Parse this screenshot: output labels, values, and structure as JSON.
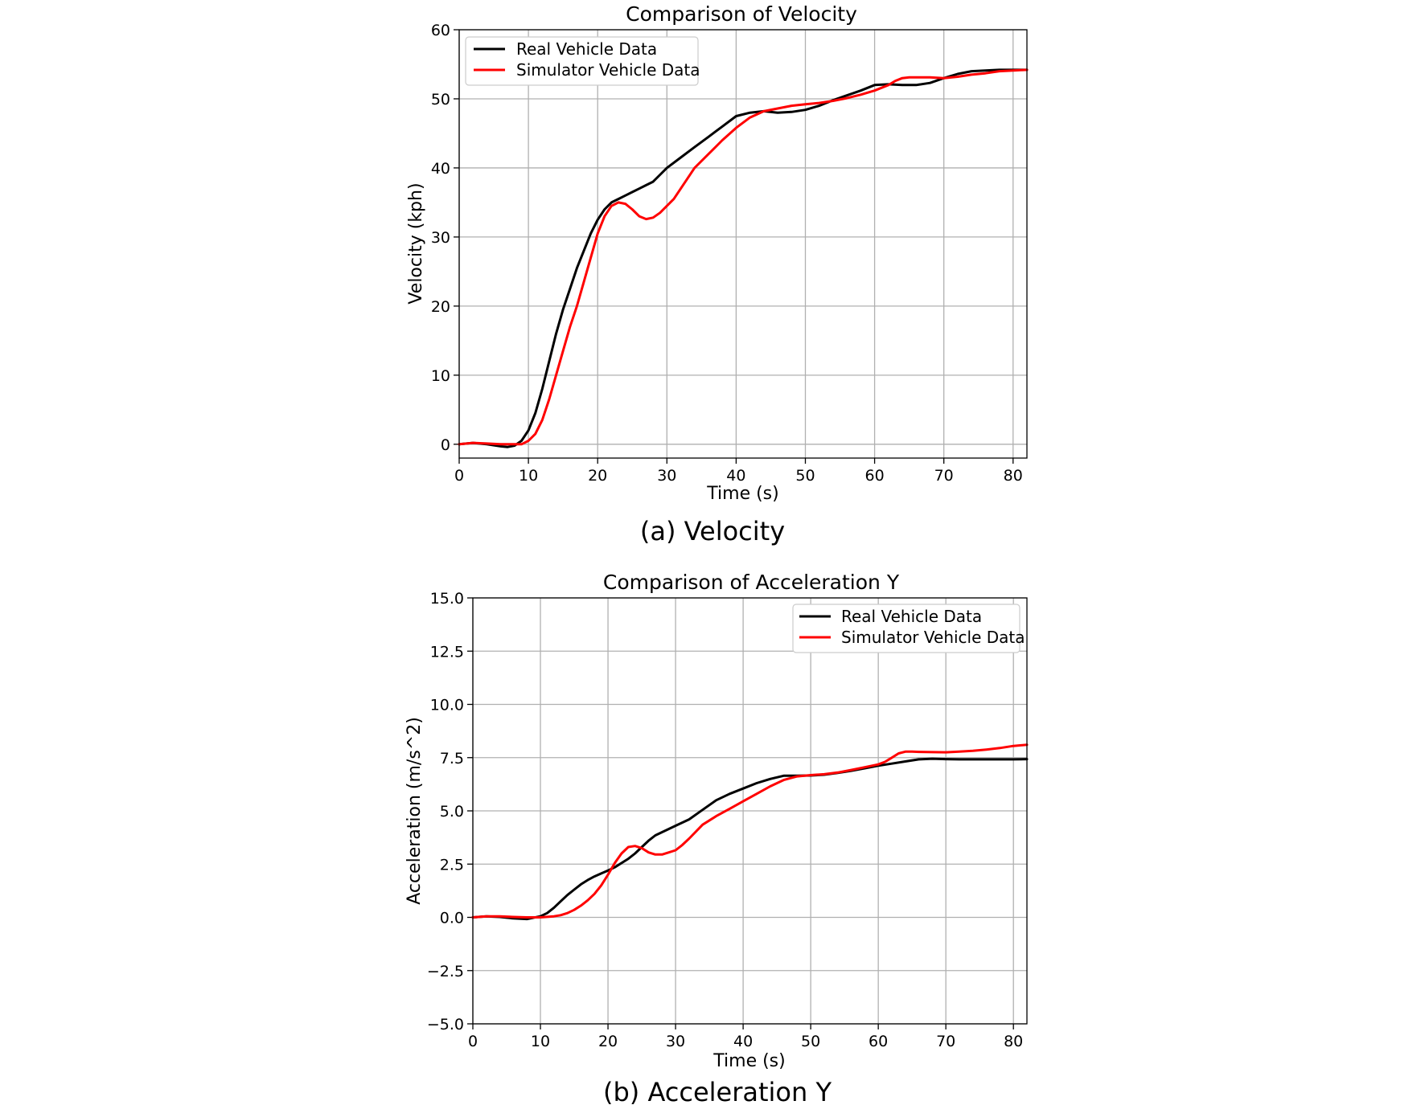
{
  "chart_data": [
    {
      "type": "line",
      "title": "Comparison of Velocity",
      "xlabel": "Time (s)",
      "ylabel": "Velocity (kph)",
      "caption": "(a)  Velocity",
      "xlim": [
        0,
        82
      ],
      "ylim": [
        -2,
        60
      ],
      "xticks": [
        0,
        10,
        20,
        30,
        40,
        50,
        60,
        70,
        80
      ],
      "yticks": [
        0,
        10,
        20,
        30,
        40,
        50,
        60
      ],
      "xtick_labels": [
        "0",
        "10",
        "20",
        "30",
        "40",
        "50",
        "60",
        "70",
        "80"
      ],
      "ytick_labels": [
        "0",
        "10",
        "20",
        "30",
        "40",
        "50",
        "60"
      ],
      "grid": true,
      "legend_position": "upper-left",
      "series": [
        {
          "name": "Real Vehicle Data",
          "color": "#000000",
          "x": [
            0,
            2,
            4,
            6,
            7,
            8,
            9,
            10,
            11,
            12,
            13,
            14,
            15,
            16,
            17,
            18,
            19,
            20,
            21,
            22,
            23,
            24,
            25,
            26,
            27,
            28,
            29,
            30,
            32,
            34,
            36,
            38,
            40,
            42,
            44,
            46,
            48,
            50,
            52,
            54,
            56,
            58,
            60,
            62,
            64,
            66,
            68,
            70,
            72,
            74,
            76,
            78,
            80,
            82
          ],
          "y": [
            0,
            0.2,
            0,
            -0.3,
            -0.4,
            -0.2,
            0.5,
            2,
            4.5,
            8,
            12,
            16,
            19.5,
            22.5,
            25.5,
            28,
            30.5,
            32.5,
            34,
            35,
            35.5,
            36,
            36.5,
            37,
            37.5,
            38,
            39,
            40,
            41.5,
            43,
            44.5,
            46,
            47.5,
            48,
            48.2,
            48,
            48.1,
            48.4,
            49,
            49.8,
            50.5,
            51.2,
            52,
            52.1,
            52,
            52,
            52.3,
            53,
            53.6,
            54,
            54.1,
            54.2,
            54.2,
            54.2
          ]
        },
        {
          "name": "Simulator Vehicle Data",
          "color": "#ff0000",
          "x": [
            0,
            2,
            4,
            6,
            8,
            9,
            10,
            11,
            12,
            13,
            14,
            15,
            16,
            17,
            18,
            19,
            20,
            21,
            22,
            23,
            24,
            25,
            26,
            27,
            28,
            29,
            30,
            31,
            32,
            34,
            36,
            38,
            40,
            42,
            44,
            46,
            48,
            50,
            52,
            54,
            56,
            58,
            60,
            62,
            63,
            64,
            65,
            66,
            68,
            70,
            72,
            74,
            76,
            78,
            80,
            82
          ],
          "y": [
            0,
            0.2,
            0.1,
            0,
            0,
            0,
            0.5,
            1.5,
            3.5,
            6.5,
            10,
            13.5,
            17,
            20,
            23.5,
            27,
            30.5,
            33,
            34.5,
            35,
            34.8,
            34,
            33,
            32.6,
            32.8,
            33.5,
            34.5,
            35.5,
            37,
            40,
            42,
            44,
            45.8,
            47.3,
            48.2,
            48.6,
            49,
            49.2,
            49.4,
            49.7,
            50.1,
            50.6,
            51.2,
            52,
            52.6,
            53,
            53.1,
            53.1,
            53.1,
            53,
            53.2,
            53.5,
            53.7,
            54,
            54.1,
            54.2
          ]
        }
      ]
    },
    {
      "type": "line",
      "title": "Comparison of Acceleration Y",
      "xlabel": "Time (s)",
      "ylabel": "Acceleration (m/s^2)",
      "caption": "(b)  Acceleration  Y",
      "xlim": [
        0,
        82
      ],
      "ylim": [
        -5,
        15
      ],
      "xticks": [
        0,
        10,
        20,
        30,
        40,
        50,
        60,
        70,
        80
      ],
      "yticks": [
        -5,
        -2.5,
        0,
        2.5,
        5,
        7.5,
        10,
        12.5,
        15
      ],
      "xtick_labels": [
        "0",
        "10",
        "20",
        "30",
        "40",
        "50",
        "60",
        "70",
        "80"
      ],
      "ytick_labels": [
        "−5.0",
        "−2.5",
        "0.0",
        "2.5",
        "5.0",
        "7.5",
        "10.0",
        "12.5",
        "15.0"
      ],
      "grid": true,
      "legend_position": "upper-right",
      "series": [
        {
          "name": "Real Vehicle Data",
          "color": "#000000",
          "x": [
            0,
            2,
            4,
            6,
            8,
            10,
            11,
            12,
            13,
            14,
            15,
            16,
            17,
            18,
            19,
            20,
            21,
            22,
            23,
            24,
            25,
            26,
            27,
            28,
            29,
            30,
            32,
            34,
            36,
            38,
            40,
            42,
            44,
            46,
            48,
            50,
            52,
            54,
            56,
            58,
            60,
            62,
            64,
            66,
            68,
            70,
            72,
            74,
            76,
            78,
            80,
            82
          ],
          "y": [
            0,
            0.05,
            0.02,
            -0.05,
            -0.08,
            0.05,
            0.2,
            0.45,
            0.75,
            1.05,
            1.3,
            1.55,
            1.75,
            1.92,
            2.06,
            2.2,
            2.35,
            2.55,
            2.75,
            3,
            3.3,
            3.6,
            3.85,
            4,
            4.15,
            4.3,
            4.6,
            5.05,
            5.5,
            5.8,
            6.05,
            6.3,
            6.5,
            6.65,
            6.65,
            6.66,
            6.7,
            6.78,
            6.88,
            7,
            7.12,
            7.22,
            7.32,
            7.42,
            7.45,
            7.43,
            7.42,
            7.42,
            7.42,
            7.42,
            7.42,
            7.43
          ]
        },
        {
          "name": "Simulator Vehicle Data",
          "color": "#ff0000",
          "x": [
            0,
            2,
            4,
            6,
            8,
            10,
            12,
            13,
            14,
            15,
            16,
            17,
            18,
            19,
            20,
            21,
            22,
            23,
            24,
            25,
            26,
            27,
            28,
            29,
            30,
            31,
            32,
            34,
            36,
            38,
            40,
            42,
            44,
            46,
            48,
            50,
            52,
            54,
            56,
            58,
            60,
            61,
            62,
            63,
            64,
            65,
            66,
            68,
            70,
            72,
            74,
            76,
            78,
            80,
            82
          ],
          "y": [
            0,
            0.05,
            0.05,
            0.02,
            0,
            0,
            0.05,
            0.1,
            0.2,
            0.35,
            0.55,
            0.8,
            1.1,
            1.5,
            2,
            2.55,
            3,
            3.3,
            3.35,
            3.25,
            3.05,
            2.95,
            2.95,
            3.05,
            3.15,
            3.4,
            3.7,
            4.35,
            4.75,
            5.1,
            5.45,
            5.8,
            6.15,
            6.45,
            6.62,
            6.68,
            6.72,
            6.8,
            6.92,
            7.05,
            7.18,
            7.3,
            7.5,
            7.7,
            7.78,
            7.78,
            7.77,
            7.76,
            7.75,
            7.78,
            7.82,
            7.88,
            7.95,
            8.05,
            8.1
          ]
        }
      ]
    }
  ]
}
